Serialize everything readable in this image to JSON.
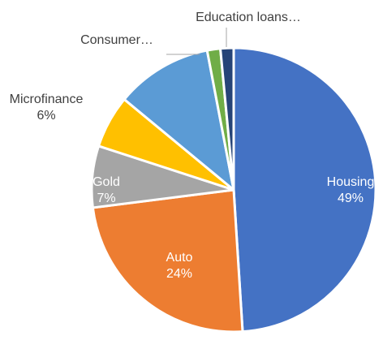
{
  "chart_data": {
    "type": "pie",
    "slices": [
      {
        "label": "Housing",
        "value": 49,
        "percent_label": "49%",
        "color": "#4472C4",
        "label_color": "#ffffff"
      },
      {
        "label": "Auto",
        "value": 24,
        "percent_label": "24%",
        "color": "#ED7D31",
        "label_color": "#ffffff"
      },
      {
        "label": "Gold",
        "value": 7,
        "percent_label": "7%",
        "color": "#A5A5A5",
        "label_color": "#ffffff"
      },
      {
        "label": "Microfinance",
        "value": 6,
        "percent_label": "6%",
        "color": "#FFC000",
        "label_color": "#404040"
      },
      {
        "label": "",
        "value": 11,
        "percent_label": "",
        "color": "#5B9BD5",
        "label_color": "#404040"
      },
      {
        "label": "Consumer…",
        "value": 1.5,
        "percent_label": "",
        "color": "#70AD47",
        "label_color": "#404040"
      },
      {
        "label": "Education loans…",
        "value": 1.5,
        "percent_label": "",
        "color": "#264478",
        "label_color": "#404040"
      }
    ],
    "legend": "none",
    "start": "top",
    "direction": "clockwise"
  }
}
